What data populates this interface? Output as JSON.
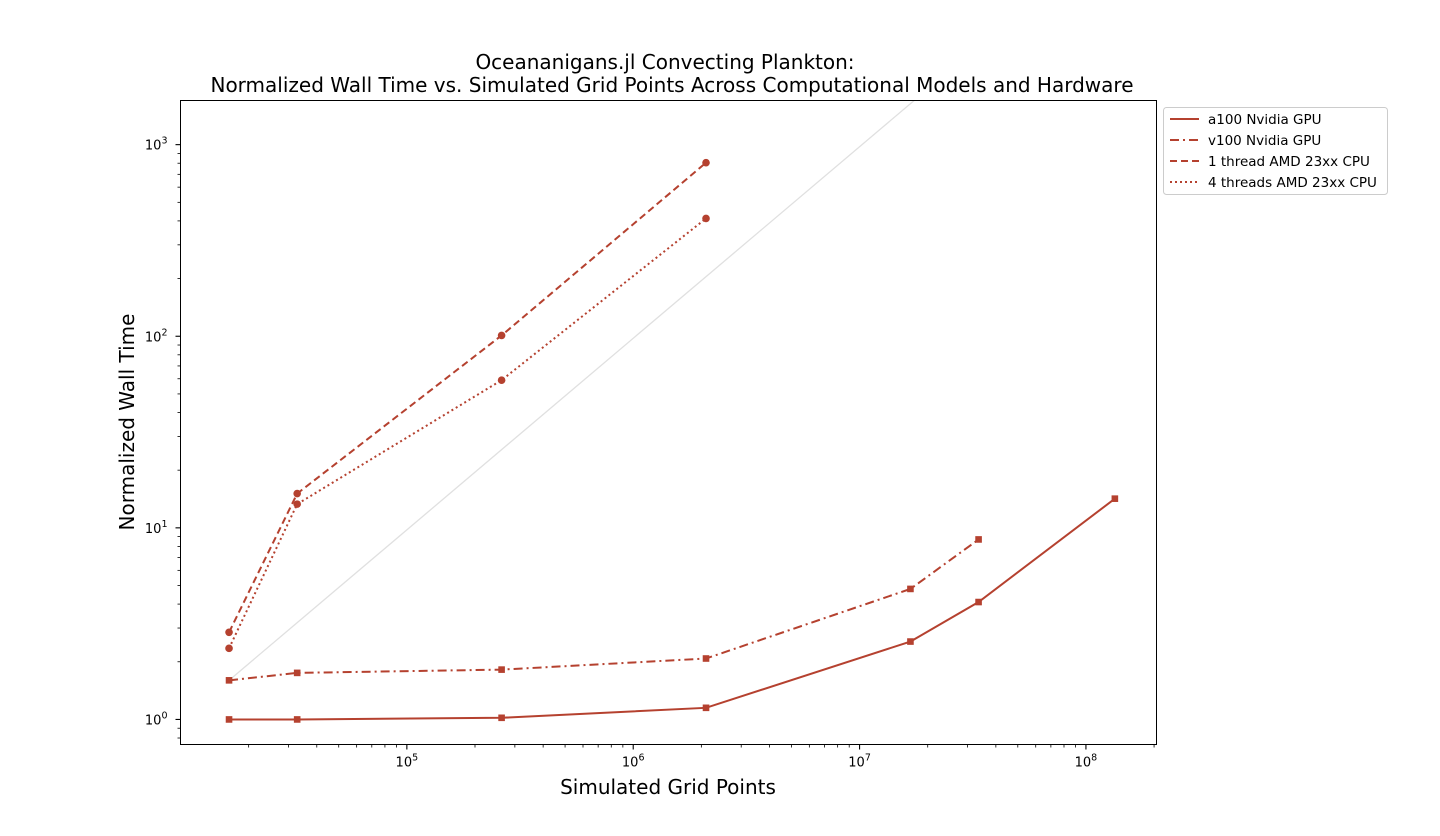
{
  "chart_data": {
    "type": "line",
    "title_line1": "Oceananigans.jl Convecting Plankton:",
    "title_line2": "Normalized Wall Time vs. Simulated Grid Points Across Computational Models and Hardware",
    "xlabel": "Simulated Grid Points",
    "ylabel": "Normalized Wall Time",
    "xscale": "log",
    "yscale": "log",
    "xlim": [
      10000,
      205000000
    ],
    "ylim": [
      0.74,
      1700
    ],
    "x_ticks": [
      {
        "base": "10",
        "exp": "5",
        "value": 100000
      },
      {
        "base": "10",
        "exp": "6",
        "value": 1000000
      },
      {
        "base": "10",
        "exp": "7",
        "value": 10000000
      },
      {
        "base": "10",
        "exp": "8",
        "value": 100000000
      }
    ],
    "y_ticks": [
      {
        "base": "10",
        "exp": "0",
        "value": 1
      },
      {
        "base": "10",
        "exp": "1",
        "value": 10
      },
      {
        "base": "10",
        "exp": "2",
        "value": 100
      },
      {
        "base": "10",
        "exp": "3",
        "value": 1000
      }
    ],
    "grid": false,
    "legend_position": "outside-top-right",
    "color": "#b5412f",
    "reference_color": "#e0e0e0",
    "reference_line": {
      "x": [
        16384,
        200000000
      ],
      "y": [
        1.6,
        19500
      ]
    },
    "series": [
      {
        "name": "a100 Nvidia GPU",
        "style": "solid",
        "marker": "square",
        "x": [
          16384,
          32768,
          262144,
          2097152,
          16777216,
          33554432,
          134217728
        ],
        "y": [
          1.0,
          1.0,
          1.02,
          1.15,
          2.55,
          4.1,
          14.2
        ]
      },
      {
        "name": "v100 Nvidia GPU",
        "style": "dashdot",
        "marker": "square",
        "x": [
          16384,
          32768,
          262144,
          2097152,
          16777216,
          33554432
        ],
        "y": [
          1.6,
          1.75,
          1.82,
          2.08,
          4.8,
          8.7
        ]
      },
      {
        "name": "1 thread AMD 23xx CPU",
        "style": "dashed",
        "marker": "circle",
        "x": [
          16384,
          32768,
          262144,
          2097152
        ],
        "y": [
          2.85,
          15.1,
          101,
          805
        ]
      },
      {
        "name": "4 threads AMD 23xx CPU",
        "style": "dotted",
        "marker": "circle",
        "x": [
          16384,
          32768,
          262144,
          2097152
        ],
        "y": [
          2.35,
          13.3,
          59,
          412
        ]
      }
    ]
  }
}
